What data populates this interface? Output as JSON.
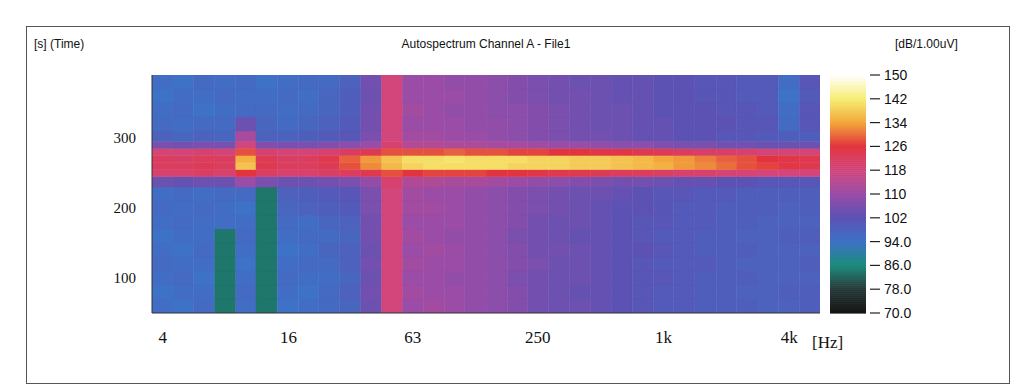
{
  "chart_data": {
    "type": "heatmap",
    "title": "Autospectrum Channel A - File1",
    "xlabel": "[Hz]",
    "ylabel": "[s] (Time)",
    "log": "x",
    "grid": false,
    "x": [
      4,
      5,
      6.3,
      8,
      10,
      12.5,
      16,
      20,
      25,
      31.5,
      40,
      50,
      63,
      80,
      100,
      125,
      160,
      200,
      250,
      315,
      400,
      500,
      630,
      800,
      1000,
      1250,
      1600,
      2000,
      2500,
      3150,
      4000,
      5000
    ],
    "y": [
      60,
      80,
      100,
      120,
      140,
      160,
      180,
      200,
      220,
      240,
      250,
      260,
      270,
      280,
      290,
      300,
      320,
      340,
      360,
      380
    ],
    "values": [
      [
        95,
        94,
        96,
        84,
        95,
        84,
        94,
        95,
        96,
        97,
        104,
        118,
        110,
        111,
        110,
        109,
        108,
        107,
        105,
        104,
        104,
        103,
        102,
        101,
        100,
        100,
        99,
        99,
        99,
        98,
        98,
        99
      ],
      [
        94,
        95,
        95,
        84,
        96,
        84,
        95,
        94,
        96,
        98,
        105,
        118,
        111,
        110,
        110,
        109,
        108,
        107,
        105,
        104,
        103,
        103,
        102,
        101,
        100,
        100,
        99,
        99,
        98,
        98,
        99,
        99
      ],
      [
        95,
        96,
        94,
        84,
        95,
        84,
        96,
        95,
        95,
        97,
        104,
        118,
        110,
        110,
        109,
        109,
        108,
        106,
        105,
        104,
        104,
        103,
        102,
        101,
        101,
        100,
        99,
        99,
        99,
        98,
        98,
        98
      ],
      [
        96,
        95,
        95,
        84,
        94,
        84,
        95,
        96,
        96,
        98,
        105,
        118,
        111,
        110,
        110,
        109,
        108,
        107,
        106,
        104,
        104,
        103,
        102,
        101,
        100,
        100,
        100,
        99,
        98,
        98,
        98,
        99
      ],
      [
        95,
        94,
        96,
        84,
        95,
        84,
        94,
        95,
        97,
        98,
        104,
        118,
        110,
        111,
        110,
        109,
        108,
        107,
        105,
        105,
        104,
        103,
        102,
        102,
        101,
        100,
        99,
        99,
        99,
        98,
        98,
        98
      ],
      [
        94,
        95,
        95,
        84,
        96,
        84,
        95,
        96,
        96,
        97,
        105,
        118,
        111,
        110,
        109,
        109,
        108,
        106,
        105,
        104,
        103,
        103,
        102,
        101,
        100,
        100,
        99,
        99,
        98,
        98,
        99,
        99
      ],
      [
        95,
        96,
        95,
        95,
        95,
        84,
        96,
        95,
        97,
        98,
        105,
        118,
        110,
        110,
        110,
        109,
        108,
        107,
        105,
        104,
        104,
        103,
        102,
        101,
        101,
        100,
        100,
        99,
        99,
        98,
        98,
        98
      ],
      [
        96,
        95,
        96,
        95,
        94,
        84,
        97,
        98,
        99,
        100,
        106,
        118,
        111,
        111,
        110,
        109,
        108,
        107,
        106,
        105,
        104,
        103,
        102,
        102,
        101,
        100,
        100,
        99,
        99,
        99,
        98,
        99
      ],
      [
        95,
        96,
        95,
        96,
        96,
        84,
        98,
        99,
        100,
        101,
        106,
        118,
        111,
        110,
        110,
        109,
        108,
        107,
        106,
        105,
        104,
        104,
        103,
        102,
        101,
        101,
        100,
        100,
        99,
        99,
        99,
        99
      ],
      [
        104,
        103,
        104,
        104,
        110,
        106,
        104,
        104,
        105,
        106,
        109,
        120,
        113,
        113,
        112,
        112,
        111,
        110,
        109,
        108,
        107,
        106,
        105,
        105,
        104,
        103,
        103,
        102,
        102,
        101,
        101,
        101
      ],
      [
        120,
        120,
        121,
        120,
        126,
        121,
        120,
        120,
        121,
        122,
        124,
        128,
        126,
        127,
        127,
        127,
        126,
        126,
        125,
        124,
        124,
        123,
        122,
        122,
        121,
        120,
        120,
        119,
        119,
        118,
        118,
        118
      ],
      [
        122,
        122,
        123,
        122,
        137,
        124,
        122,
        122,
        123,
        128,
        132,
        136,
        139,
        140,
        140,
        140,
        140,
        139,
        139,
        139,
        138,
        138,
        137,
        136,
        135,
        133,
        132,
        130,
        128,
        127,
        125,
        124
      ],
      [
        122,
        121,
        122,
        122,
        135,
        123,
        121,
        122,
        124,
        129,
        133,
        137,
        140,
        140,
        141,
        140,
        140,
        140,
        139,
        139,
        138,
        138,
        137,
        136,
        134,
        133,
        131,
        129,
        128,
        126,
        125,
        124
      ],
      [
        119,
        119,
        120,
        119,
        128,
        120,
        119,
        119,
        120,
        122,
        124,
        128,
        128,
        128,
        129,
        128,
        128,
        127,
        127,
        126,
        126,
        125,
        125,
        124,
        123,
        122,
        121,
        121,
        120,
        119,
        119,
        119
      ],
      [
        106,
        105,
        106,
        106,
        118,
        107,
        106,
        106,
        107,
        108,
        110,
        120,
        114,
        114,
        113,
        113,
        112,
        112,
        111,
        110,
        110,
        109,
        108,
        108,
        107,
        106,
        106,
        105,
        105,
        104,
        104,
        104
      ],
      [
        98,
        97,
        98,
        97,
        112,
        98,
        98,
        99,
        100,
        101,
        106,
        118,
        111,
        111,
        110,
        110,
        109,
        108,
        107,
        106,
        105,
        105,
        104,
        103,
        103,
        102,
        102,
        101,
        101,
        100,
        99,
        99
      ],
      [
        96,
        95,
        96,
        96,
        104,
        97,
        96,
        97,
        98,
        100,
        105,
        118,
        110,
        110,
        110,
        109,
        109,
        108,
        107,
        106,
        105,
        104,
        104,
        103,
        103,
        102,
        102,
        102,
        101,
        101,
        96,
        101
      ],
      [
        95,
        96,
        94,
        95,
        96,
        96,
        95,
        96,
        97,
        99,
        105,
        118,
        111,
        110,
        109,
        109,
        108,
        108,
        107,
        106,
        105,
        104,
        104,
        103,
        102,
        102,
        102,
        101,
        101,
        100,
        95,
        101
      ],
      [
        94,
        95,
        95,
        96,
        95,
        95,
        96,
        95,
        97,
        99,
        104,
        118,
        110,
        110,
        110,
        109,
        108,
        107,
        106,
        105,
        105,
        104,
        103,
        103,
        102,
        102,
        101,
        101,
        100,
        100,
        94,
        100
      ],
      [
        95,
        94,
        96,
        95,
        96,
        94,
        95,
        96,
        96,
        98,
        105,
        118,
        110,
        110,
        109,
        109,
        108,
        107,
        106,
        105,
        104,
        104,
        103,
        103,
        102,
        102,
        101,
        101,
        100,
        100,
        95,
        101
      ]
    ],
    "xlim": [
      3.55,
      5620
    ],
    "xticks": [
      4,
      16,
      63,
      250,
      {
        "value": 1000,
        "label": "1k"
      },
      {
        "value": 4000,
        "label": "4k"
      }
    ],
    "ylim": [
      50,
      390
    ],
    "yticks": [
      100,
      200,
      300
    ],
    "colorbar": {
      "label": "[dB/1.00uV]",
      "range": [
        70,
        150
      ],
      "ticks": [
        150,
        142,
        134,
        126,
        118,
        110,
        102,
        {
          "value": 94,
          "label": "94.0"
        },
        {
          "value": 86,
          "label": "86.0"
        },
        {
          "value": 78,
          "label": "78.0"
        },
        {
          "value": 70,
          "label": "70.0"
        }
      ]
    }
  }
}
